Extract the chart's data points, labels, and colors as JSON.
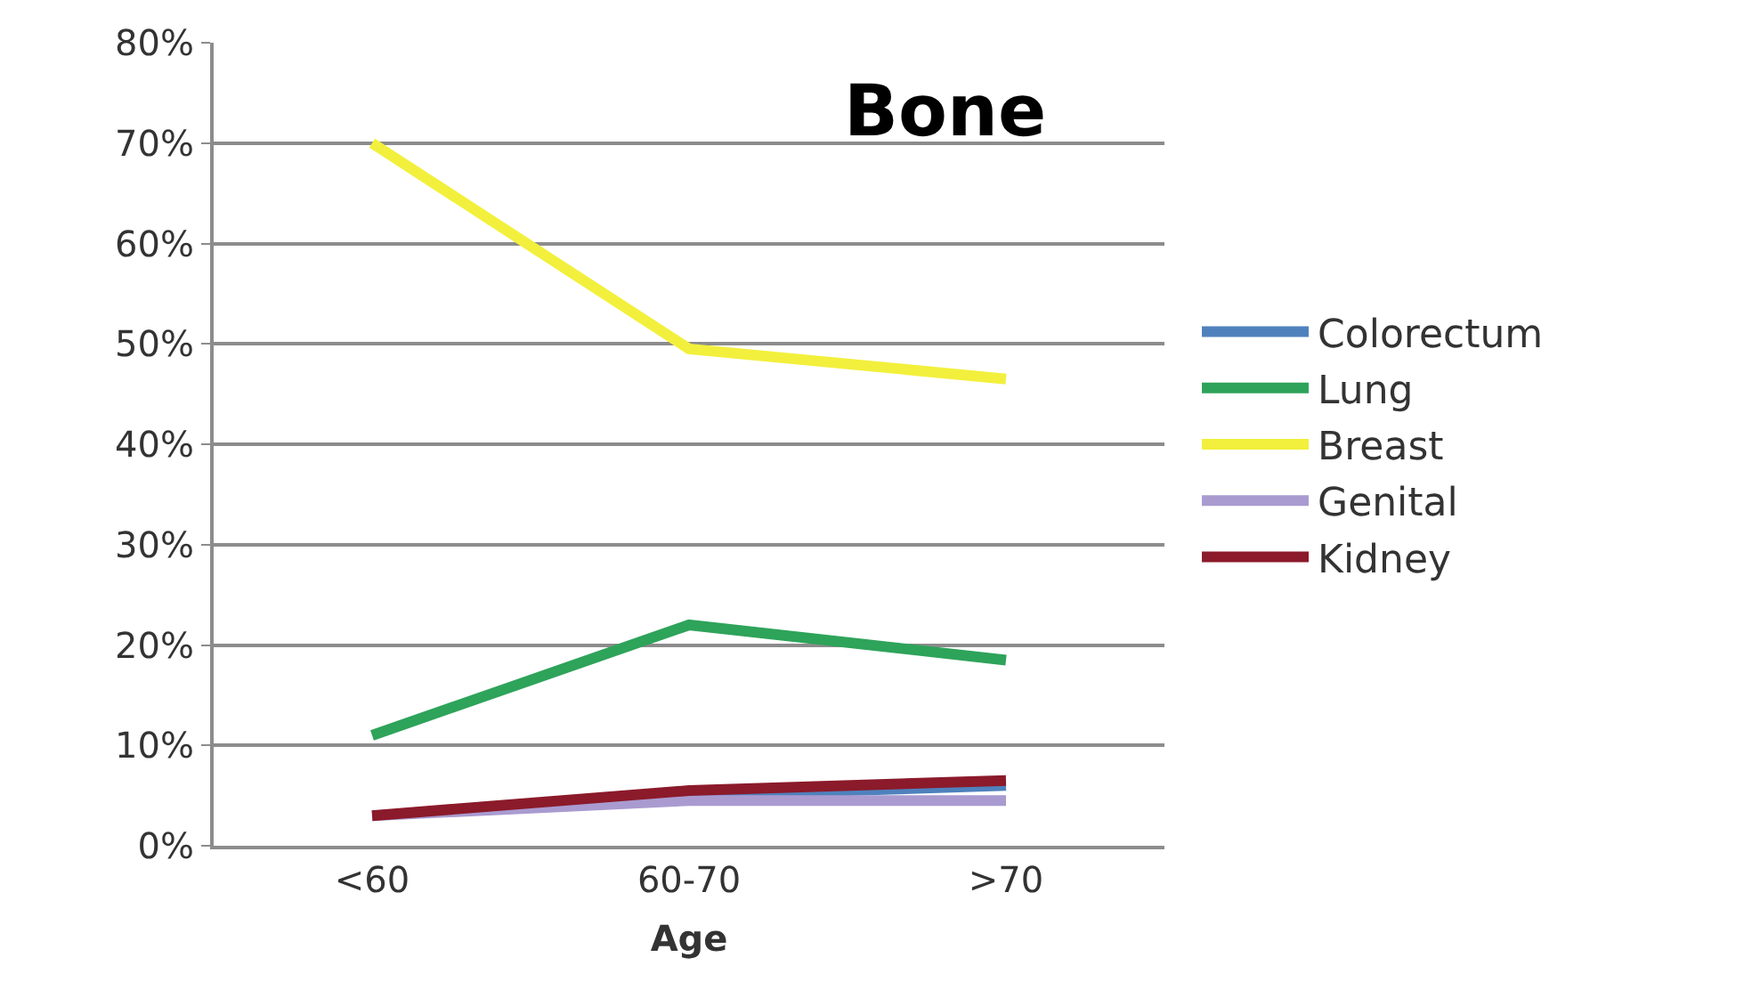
{
  "chart_data": {
    "type": "line",
    "title": "Bone",
    "xlabel": "Age",
    "categories": [
      "<60",
      "60-70",
      ">70"
    ],
    "series": [
      {
        "name": "Colorectum",
        "color": "#4f81bd",
        "values": [
          null,
          5,
          6
        ]
      },
      {
        "name": "Lung",
        "color": "#2ea35a",
        "values": [
          11,
          22,
          18.5
        ]
      },
      {
        "name": "Breast",
        "color": "#f2f03c",
        "values": [
          70,
          49.5,
          46.5
        ]
      },
      {
        "name": "Genital",
        "color": "#a99bd0",
        "values": [
          3,
          4.5,
          4.5
        ]
      },
      {
        "name": "Kidney",
        "color": "#8b1a2a",
        "values": [
          3,
          5.5,
          6.5
        ]
      }
    ],
    "ylim": [
      0,
      80
    ],
    "yticks": [
      {
        "value": 0,
        "label": "0%"
      },
      {
        "value": 10,
        "label": "10%"
      },
      {
        "value": 20,
        "label": "20%"
      },
      {
        "value": 30,
        "label": "30%"
      },
      {
        "value": 40,
        "label": "40%"
      },
      {
        "value": 50,
        "label": "50%"
      },
      {
        "value": 60,
        "label": "60%"
      },
      {
        "value": 70,
        "label": "70%"
      },
      {
        "value": 80,
        "label": "80%"
      }
    ],
    "grid": "y",
    "legend": "right",
    "marker": "none",
    "line_style": "solid"
  }
}
